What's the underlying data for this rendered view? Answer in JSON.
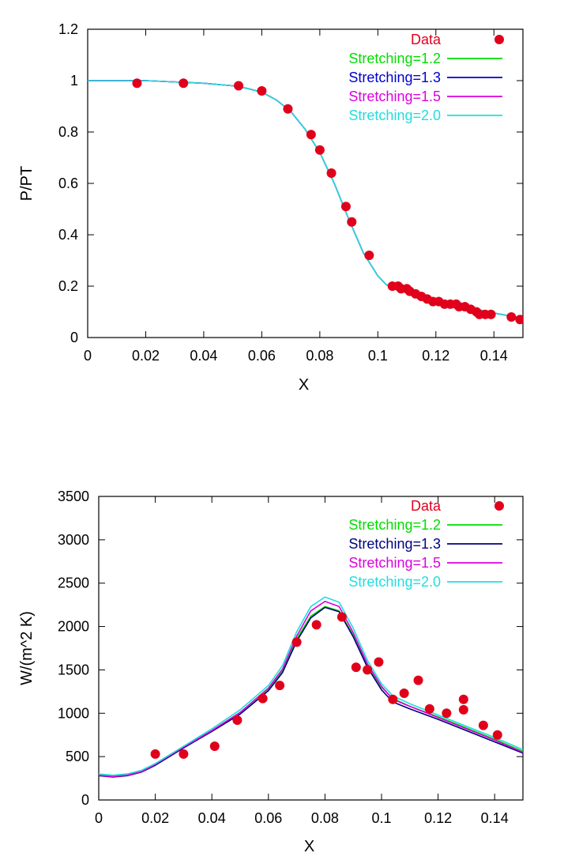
{
  "chart_data": [
    {
      "type": "line",
      "title": "",
      "xlabel": "X",
      "ylabel": "P/PT",
      "xlim": [
        0,
        0.15
      ],
      "ylim": [
        0,
        1.2
      ],
      "xticks": [
        "0",
        "0.02",
        "0.04",
        "0.06",
        "0.08",
        "0.1",
        "0.12",
        "0.14"
      ],
      "xtick_values": [
        0,
        0.02,
        0.04,
        0.06,
        0.08,
        0.1,
        0.12,
        0.14
      ],
      "yticks": [
        "0",
        "0.2",
        "0.4",
        "0.6",
        "0.8",
        "1",
        "1.2"
      ],
      "ytick_values": [
        0,
        0.2,
        0.4,
        0.6,
        0.8,
        1.0,
        1.2
      ],
      "grid": false,
      "legend_position": "top-right",
      "series": [
        {
          "name": "Data",
          "kind": "scatter",
          "color": "#e0001b",
          "x": [
            0.017,
            0.033,
            0.052,
            0.06,
            0.069,
            0.077,
            0.08,
            0.084,
            0.089,
            0.091,
            0.097,
            0.105,
            0.107,
            0.108,
            0.11,
            0.111,
            0.113,
            0.115,
            0.117,
            0.119,
            0.121,
            0.123,
            0.125,
            0.127,
            0.128,
            0.13,
            0.132,
            0.134,
            0.135,
            0.137,
            0.139,
            0.146,
            0.149
          ],
          "y": [
            0.99,
            0.99,
            0.98,
            0.96,
            0.89,
            0.79,
            0.73,
            0.64,
            0.51,
            0.45,
            0.32,
            0.2,
            0.2,
            0.19,
            0.19,
            0.18,
            0.17,
            0.16,
            0.15,
            0.14,
            0.14,
            0.13,
            0.13,
            0.13,
            0.12,
            0.12,
            0.11,
            0.1,
            0.09,
            0.09,
            0.09,
            0.08,
            0.07
          ]
        },
        {
          "name": "Stretching=1.2",
          "kind": "line",
          "color": "#00dd00",
          "x": [
            0,
            0.02,
            0.04,
            0.05,
            0.055,
            0.06,
            0.065,
            0.07,
            0.075,
            0.08,
            0.085,
            0.09,
            0.095,
            0.1,
            0.103,
            0.105,
            0.11,
            0.12,
            0.13,
            0.14,
            0.15
          ],
          "y": [
            1.0,
            1.0,
            0.99,
            0.98,
            0.97,
            0.955,
            0.925,
            0.88,
            0.81,
            0.72,
            0.6,
            0.46,
            0.33,
            0.24,
            0.205,
            0.2,
            0.18,
            0.15,
            0.12,
            0.095,
            0.075
          ]
        },
        {
          "name": "Stretching=1.3",
          "kind": "line",
          "color": "#0000cc",
          "x": [
            0,
            0.02,
            0.04,
            0.05,
            0.055,
            0.06,
            0.065,
            0.07,
            0.075,
            0.08,
            0.085,
            0.09,
            0.095,
            0.1,
            0.103,
            0.105,
            0.11,
            0.12,
            0.13,
            0.14,
            0.15
          ],
          "y": [
            1.0,
            1.0,
            0.99,
            0.98,
            0.97,
            0.955,
            0.925,
            0.88,
            0.81,
            0.72,
            0.6,
            0.46,
            0.33,
            0.24,
            0.205,
            0.2,
            0.18,
            0.15,
            0.12,
            0.095,
            0.075
          ]
        },
        {
          "name": "Stretching=1.5",
          "kind": "line",
          "color": "#dd00dd",
          "x": [
            0,
            0.02,
            0.04,
            0.05,
            0.055,
            0.06,
            0.065,
            0.07,
            0.075,
            0.08,
            0.085,
            0.09,
            0.095,
            0.1,
            0.103,
            0.105,
            0.11,
            0.12,
            0.13,
            0.14,
            0.15
          ],
          "y": [
            1.0,
            1.0,
            0.99,
            0.98,
            0.97,
            0.955,
            0.925,
            0.88,
            0.81,
            0.72,
            0.6,
            0.46,
            0.33,
            0.24,
            0.205,
            0.2,
            0.18,
            0.15,
            0.12,
            0.095,
            0.075
          ]
        },
        {
          "name": "Stretching=2.0",
          "kind": "line",
          "color": "#22dddd",
          "x": [
            0,
            0.02,
            0.04,
            0.05,
            0.055,
            0.06,
            0.065,
            0.07,
            0.075,
            0.08,
            0.085,
            0.09,
            0.095,
            0.1,
            0.103,
            0.105,
            0.11,
            0.12,
            0.13,
            0.14,
            0.15
          ],
          "y": [
            1.0,
            1.0,
            0.99,
            0.98,
            0.97,
            0.955,
            0.925,
            0.88,
            0.81,
            0.72,
            0.6,
            0.46,
            0.33,
            0.24,
            0.205,
            0.2,
            0.18,
            0.15,
            0.12,
            0.095,
            0.075
          ]
        }
      ]
    },
    {
      "type": "line",
      "title": "",
      "xlabel": "X",
      "ylabel": "W/(m^2 K)",
      "xlim": [
        0,
        0.15
      ],
      "ylim": [
        0,
        3500
      ],
      "xticks": [
        "0",
        "0.02",
        "0.04",
        "0.06",
        "0.08",
        "0.1",
        "0.12",
        "0.14"
      ],
      "xtick_values": [
        0,
        0.02,
        0.04,
        0.06,
        0.08,
        0.1,
        0.12,
        0.14
      ],
      "yticks": [
        "0",
        "500",
        "1000",
        "1500",
        "2000",
        "2500",
        "3000",
        "3500"
      ],
      "ytick_values": [
        0,
        500,
        1000,
        1500,
        2000,
        2500,
        3000,
        3500
      ],
      "grid": false,
      "legend_position": "top-right",
      "series": [
        {
          "name": "Data",
          "kind": "scatter",
          "color": "#e0001b",
          "x": [
            0.02,
            0.03,
            0.041,
            0.049,
            0.058,
            0.064,
            0.07,
            0.077,
            0.086,
            0.091,
            0.095,
            0.099,
            0.104,
            0.108,
            0.113,
            0.117,
            0.123,
            0.129,
            0.129,
            0.136,
            0.141
          ],
          "y": [
            530,
            530,
            620,
            920,
            1170,
            1320,
            1820,
            2020,
            2110,
            1530,
            1500,
            1590,
            1160,
            1230,
            1380,
            1050,
            1000,
            1160,
            1040,
            860,
            750
          ]
        },
        {
          "name": "Stretching=1.2",
          "kind": "line",
          "color": "#00dd00",
          "x": [
            0,
            0.005,
            0.01,
            0.015,
            0.02,
            0.03,
            0.04,
            0.05,
            0.06,
            0.065,
            0.07,
            0.075,
            0.08,
            0.085,
            0.09,
            0.095,
            0.1,
            0.104,
            0.11,
            0.12,
            0.13,
            0.14,
            0.15
          ],
          "y": [
            290,
            275,
            290,
            330,
            410,
            610,
            800,
            1010,
            1280,
            1490,
            1860,
            2120,
            2230,
            2180,
            1900,
            1550,
            1300,
            1170,
            1080,
            960,
            830,
            700,
            560
          ]
        },
        {
          "name": "Stretching=1.3",
          "kind": "line",
          "color": "#000080",
          "x": [
            0,
            0.005,
            0.01,
            0.015,
            0.02,
            0.03,
            0.04,
            0.05,
            0.06,
            0.065,
            0.07,
            0.075,
            0.08,
            0.085,
            0.09,
            0.095,
            0.1,
            0.104,
            0.11,
            0.12,
            0.13,
            0.14,
            0.15
          ],
          "y": [
            280,
            265,
            280,
            320,
            400,
            600,
            790,
            990,
            1260,
            1470,
            1830,
            2100,
            2220,
            2170,
            1880,
            1530,
            1270,
            1130,
            1050,
            930,
            800,
            670,
            540
          ]
        },
        {
          "name": "Stretching=1.5",
          "kind": "line",
          "color": "#dd00dd",
          "x": [
            0,
            0.005,
            0.01,
            0.015,
            0.02,
            0.03,
            0.04,
            0.05,
            0.06,
            0.065,
            0.07,
            0.075,
            0.08,
            0.085,
            0.09,
            0.095,
            0.1,
            0.104,
            0.11,
            0.12,
            0.13,
            0.14,
            0.15
          ],
          "y": [
            285,
            270,
            285,
            325,
            410,
            610,
            800,
            1010,
            1290,
            1510,
            1890,
            2180,
            2290,
            2230,
            1930,
            1570,
            1310,
            1160,
            1080,
            950,
            820,
            690,
            550
          ]
        },
        {
          "name": "Stretching=2.0",
          "kind": "line",
          "color": "#22dddd",
          "x": [
            0,
            0.005,
            0.01,
            0.015,
            0.02,
            0.03,
            0.04,
            0.05,
            0.06,
            0.065,
            0.07,
            0.075,
            0.08,
            0.085,
            0.09,
            0.095,
            0.1,
            0.104,
            0.11,
            0.12,
            0.13,
            0.14,
            0.15
          ],
          "y": [
            300,
            285,
            300,
            340,
            420,
            620,
            820,
            1040,
            1320,
            1550,
            1940,
            2230,
            2340,
            2280,
            1980,
            1610,
            1340,
            1200,
            1110,
            980,
            850,
            720,
            580
          ]
        }
      ]
    }
  ]
}
